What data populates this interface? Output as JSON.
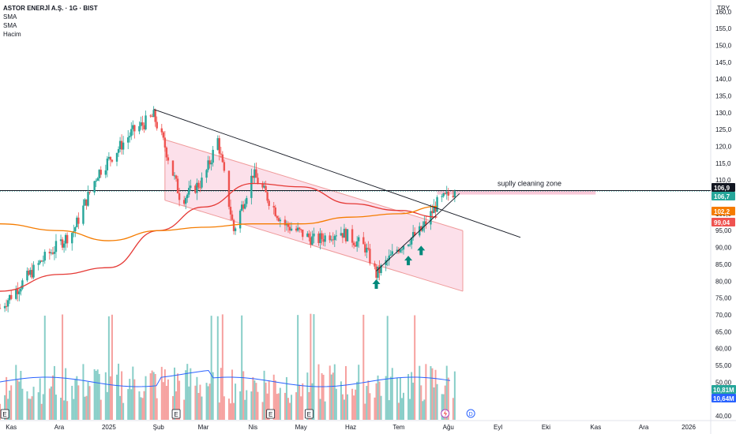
{
  "legend": {
    "symbol_title": "ASTOR ENERJİ A.Ş. · 1G · BIST",
    "indicators": [
      "SMA",
      "SMA",
      "Hacim"
    ]
  },
  "currency": "TRY",
  "annotation": "suplly cleaning zone",
  "colors": {
    "up": "#26a69a",
    "down": "#ef5350",
    "sma_fast": "#e53935",
    "sma_slow": "#f57c00",
    "volume_ma": "#2962ff",
    "channel_fill": "#f8bbd0",
    "channel_line": "#ef9a9a",
    "trendline": "#131722",
    "arrow": "#00897b"
  },
  "chart_data": {
    "type": "candlestick",
    "title": "ASTOR ENERJİ A.Ş. · 1G · BIST",
    "ylim": [
      40,
      163
    ],
    "y_ticks": [
      "160,0",
      "155,0",
      "150,0",
      "145,0",
      "140,0",
      "135,0",
      "130,0",
      "125,0",
      "120,0",
      "115,0",
      "110,0",
      "105,0",
      "100,0",
      "95,00",
      "90,00",
      "85,00",
      "80,00",
      "75,00",
      "70,00",
      "65,00",
      "60,00",
      "55,00",
      "50,00",
      "45,00",
      "40,00"
    ],
    "y_tick_values": [
      160,
      155,
      150,
      145,
      140,
      135,
      130,
      125,
      120,
      115,
      110,
      105,
      100,
      95,
      90,
      85,
      80,
      75,
      70,
      65,
      60,
      55,
      50,
      45,
      40
    ],
    "x_ticks": [
      "Kas",
      "Ara",
      "2025",
      "Şub",
      "Mar",
      "Nis",
      "May",
      "Haz",
      "Tem",
      "Ağu",
      "Eyl",
      "Eki",
      "Kas",
      "Ara",
      "2026"
    ],
    "price_key_points": [
      [
        "2024-10-25",
        72
      ],
      [
        "2024-11-20",
        86
      ],
      [
        "2024-12-10",
        95
      ],
      [
        "2024-12-25",
        112
      ],
      [
        "2025-01-15",
        124
      ],
      [
        "2025-01-29",
        129
      ],
      [
        "2025-02-05",
        120
      ],
      [
        "2025-02-15",
        104
      ],
      [
        "2025-03-01",
        110
      ],
      [
        "2025-03-10",
        122
      ],
      [
        "2025-03-20",
        95
      ],
      [
        "2025-04-01",
        112
      ],
      [
        "2025-04-20",
        97
      ],
      [
        "2025-05-10",
        92
      ],
      [
        "2025-05-25",
        95
      ],
      [
        "2025-06-10",
        90
      ],
      [
        "2025-06-17",
        82
      ],
      [
        "2025-07-01",
        90
      ],
      [
        "2025-07-15",
        95
      ],
      [
        "2025-07-25",
        103
      ],
      [
        "2025-08-05",
        106.9
      ]
    ],
    "series": [
      {
        "name": "SMA",
        "points": [
          [
            "2024-10-25",
            77
          ],
          [
            "2024-12-01",
            82
          ],
          [
            "2025-01-01",
            84
          ],
          [
            "2025-02-01",
            95
          ],
          [
            "2025-03-01",
            102
          ],
          [
            "2025-04-01",
            109
          ],
          [
            "2025-05-01",
            108
          ],
          [
            "2025-06-01",
            103
          ],
          [
            "2025-07-01",
            101
          ],
          [
            "2025-07-25",
            99.04
          ]
        ]
      },
      {
        "name": "SMA",
        "points": [
          [
            "2024-10-25",
            97
          ],
          [
            "2024-12-01",
            95
          ],
          [
            "2025-01-01",
            92
          ],
          [
            "2025-02-01",
            95
          ],
          [
            "2025-03-01",
            96
          ],
          [
            "2025-04-01",
            97
          ],
          [
            "2025-05-01",
            97
          ],
          [
            "2025-06-01",
            99
          ],
          [
            "2025-07-01",
            100
          ],
          [
            "2025-07-25",
            102.2
          ]
        ]
      }
    ],
    "volume_labels": [
      "10,81M",
      "10,64M"
    ],
    "price_labels": [
      {
        "text": "106,9",
        "value": 106.9,
        "color": "#131722"
      },
      {
        "text": "106,7",
        "value": 106.7,
        "color": "#26a69a"
      },
      {
        "text": "102,2",
        "value": 102.2,
        "color": "#f57c00"
      },
      {
        "text": "99,04",
        "value": 99.04,
        "color": "#ef5350"
      }
    ],
    "resistance_level": 106.9,
    "descending_trendline": [
      [
        "2025-01-29",
        131
      ],
      [
        "2025-09-15",
        93
      ]
    ],
    "ascending_trendline": [
      [
        "2025-06-17",
        83
      ],
      [
        "2025-08-08",
        106
      ]
    ],
    "channel_upper": [
      [
        "2025-02-05",
        122
      ],
      [
        "2025-08-10",
        95
      ]
    ],
    "channel_lower": [
      [
        "2025-02-05",
        104
      ],
      [
        "2025-08-10",
        77
      ]
    ],
    "buy_arrows": [
      [
        "2025-06-17",
        81
      ],
      [
        "2025-07-07",
        88
      ],
      [
        "2025-07-15",
        91
      ]
    ],
    "event_markers": [
      "E",
      "E",
      "E",
      "E"
    ]
  }
}
